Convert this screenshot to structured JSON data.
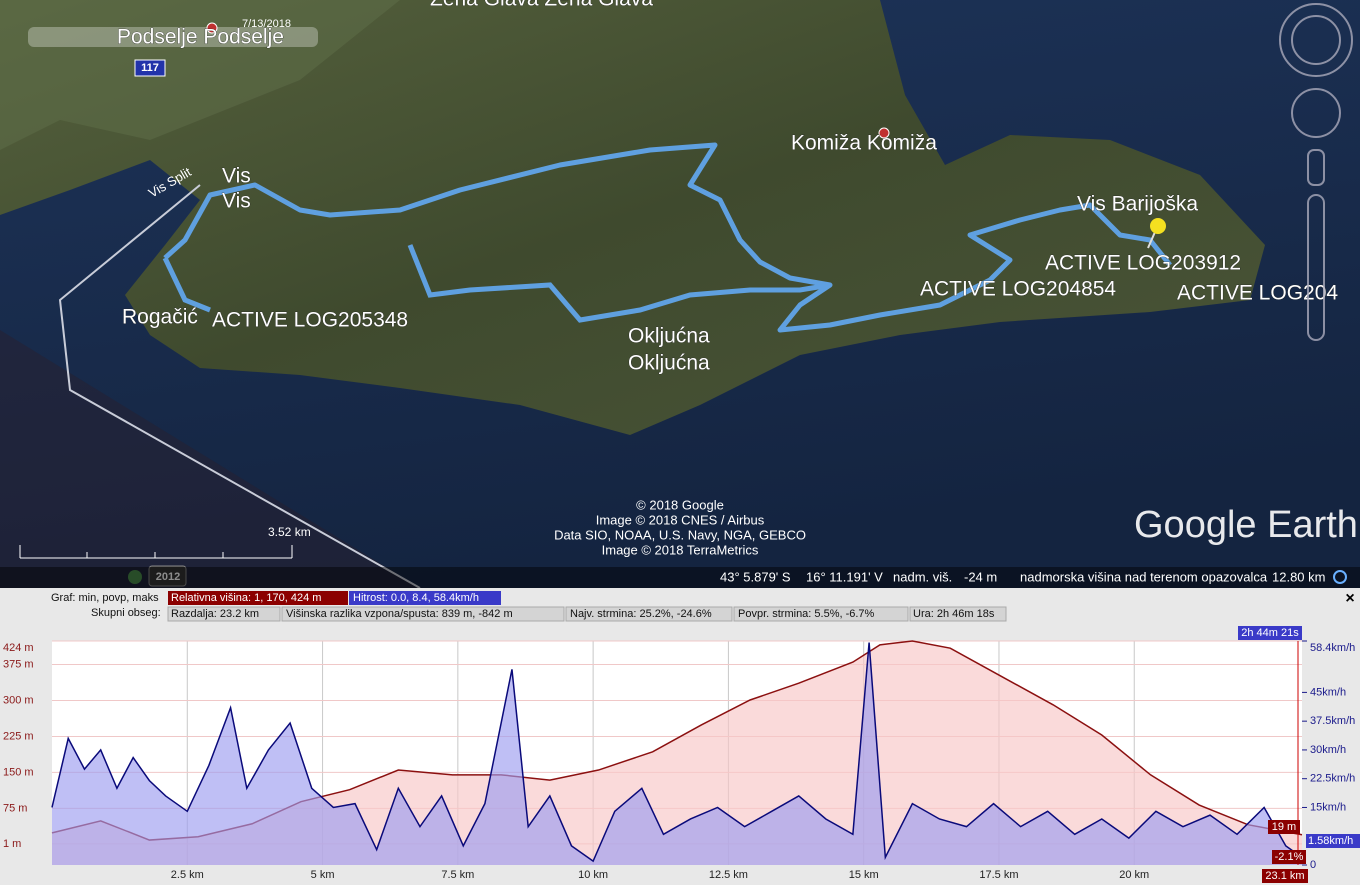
{
  "map": {
    "labels": [
      "Zena Glava  Zena Glava",
      "Podselje  Podselje",
      "7/13/2018",
      "117",
      "Vis Split",
      "Vis",
      "Vis",
      "Komiža  Komiža",
      "Vis Barijoška",
      "ACTIVE LOG203912",
      "ACTIVE LOG204854",
      "ACTIVE LOG204",
      "Rogačić",
      "ACTIVE LOG205348",
      "Okljućna",
      "Okljućna"
    ],
    "attribution": [
      "© 2018 Google",
      "Image © 2018 CNES / Airbus",
      "Data SIO, NOAA, U.S. Navy, NGA, GEBCO",
      "Image © 2018 TerraMetrics"
    ],
    "logo": "Google Earth",
    "scale": "3.52 km",
    "year": "2012"
  },
  "status_bar": {
    "lat": "43° 5.879' S",
    "lon": "16° 11.191' V",
    "elev_label": "nadm. viš.",
    "elev": "-24 m",
    "eye_label": "nadmorska višina nad terenom opazovalca",
    "eye": "12.80 km"
  },
  "profile_info": {
    "row1": [
      "Graf: min, povp, maks",
      "Relativna višina: 1, 170, 424 m",
      "Hitrost: 0.0, 8.4, 58.4km/h"
    ],
    "row2": [
      "Skupni obseg:",
      "Razdalja: 23.2 km",
      "Višinska razlika vzpona/spusta: 839 m, -842 m",
      "Najv. strmina: 25.2%, -24.6%",
      "Povpr. strmina: 5.5%, -6.7%",
      "Ura: 2h 46m 18s"
    ],
    "close": "×"
  },
  "chart_data": {
    "type": "line",
    "xlim": [
      0,
      23.1
    ],
    "xticks": [
      {
        "value": 2.5,
        "label": "2.5 km"
      },
      {
        "value": 5,
        "label": "5 km"
      },
      {
        "value": 7.5,
        "label": "7.5 km"
      },
      {
        "value": 10,
        "label": "10 km"
      },
      {
        "value": 12.5,
        "label": "12.5 km"
      },
      {
        "value": 15,
        "label": "15 km"
      },
      {
        "value": 17.5,
        "label": "17.5 km"
      },
      {
        "value": 20,
        "label": "20 km"
      }
    ],
    "ylim": [
      -43,
      424
    ],
    "yticks": [
      {
        "value": 424,
        "label": "424 m"
      },
      {
        "value": 375,
        "label": "375 m"
      },
      {
        "value": 300,
        "label": "300 m"
      },
      {
        "value": 225,
        "label": "225 m"
      },
      {
        "value": 150,
        "label": "150 m"
      },
      {
        "value": 75,
        "label": "75 m"
      },
      {
        "value": 1,
        "label": "1 m"
      }
    ],
    "y2lim": [
      0,
      58.4
    ],
    "y2ticks": [
      {
        "value": 58.4,
        "label": "58.4km/h"
      },
      {
        "value": 45,
        "label": "45km/h"
      },
      {
        "value": 37.5,
        "label": "37.5km/h"
      },
      {
        "value": 30,
        "label": "30km/h"
      },
      {
        "value": 22.5,
        "label": "22.5km/h"
      },
      {
        "value": 15,
        "label": "15km/h"
      },
      0
    ],
    "grid": true,
    "series": [
      {
        "color": "#8b1010",
        "fill": "#f7c6c6",
        "x": [
          0,
          0.9,
          1.8,
          2.7,
          3.7,
          4.6,
          5.5,
          6.4,
          7.4,
          8.3,
          9.2,
          10.1,
          11.1,
          12.0,
          12.9,
          13.8,
          14.8,
          15.3,
          15.9,
          16.6,
          17.5,
          18.5,
          19.4,
          20.3,
          21.2,
          22.1,
          23.1
        ],
        "values": [
          24,
          49,
          9,
          16,
          43,
          89,
          114,
          155,
          145,
          145,
          134,
          155,
          193,
          249,
          301,
          336,
          380,
          416,
          424,
          409,
          353,
          291,
          228,
          145,
          82,
          41,
          20
        ]
      },
      {
        "color": "#0a0a7a",
        "fill": "#9c9cf0",
        "axis": "y2",
        "x": [
          0,
          0.3,
          0.6,
          0.9,
          1.2,
          1.5,
          1.8,
          2.1,
          2.5,
          2.9,
          3.3,
          3.6,
          4.0,
          4.4,
          4.8,
          5.2,
          5.6,
          6.0,
          6.4,
          6.8,
          7.2,
          7.6,
          8.0,
          8.5,
          8.8,
          9.2,
          9.6,
          10.0,
          10.4,
          10.9,
          11.3,
          11.8,
          12.3,
          12.8,
          13.3,
          13.8,
          14.3,
          14.8,
          15.1,
          15.4,
          15.9,
          16.4,
          16.9,
          17.4,
          17.9,
          18.4,
          18.9,
          19.4,
          19.9,
          20.4,
          20.9,
          21.4,
          21.9,
          22.4,
          22.8,
          23.1
        ],
        "values": [
          15,
          33,
          25,
          30,
          20,
          28,
          22,
          18,
          14,
          26,
          41,
          20,
          30,
          37,
          20,
          15,
          16,
          4,
          20,
          10,
          18,
          5,
          16,
          51,
          10,
          18,
          5,
          1,
          14,
          20,
          8,
          12,
          15,
          10,
          14,
          18,
          12,
          8,
          58,
          2,
          16,
          12,
          10,
          16,
          10,
          14,
          8,
          12,
          7,
          14,
          10,
          13,
          8,
          15,
          5,
          2
        ]
      }
    ],
    "cursor": {
      "time": "2h 44m 21s",
      "elevation": "19 m",
      "speed": "1.58km/h",
      "grade": "-2.1%",
      "distance": "23.1 km"
    }
  }
}
